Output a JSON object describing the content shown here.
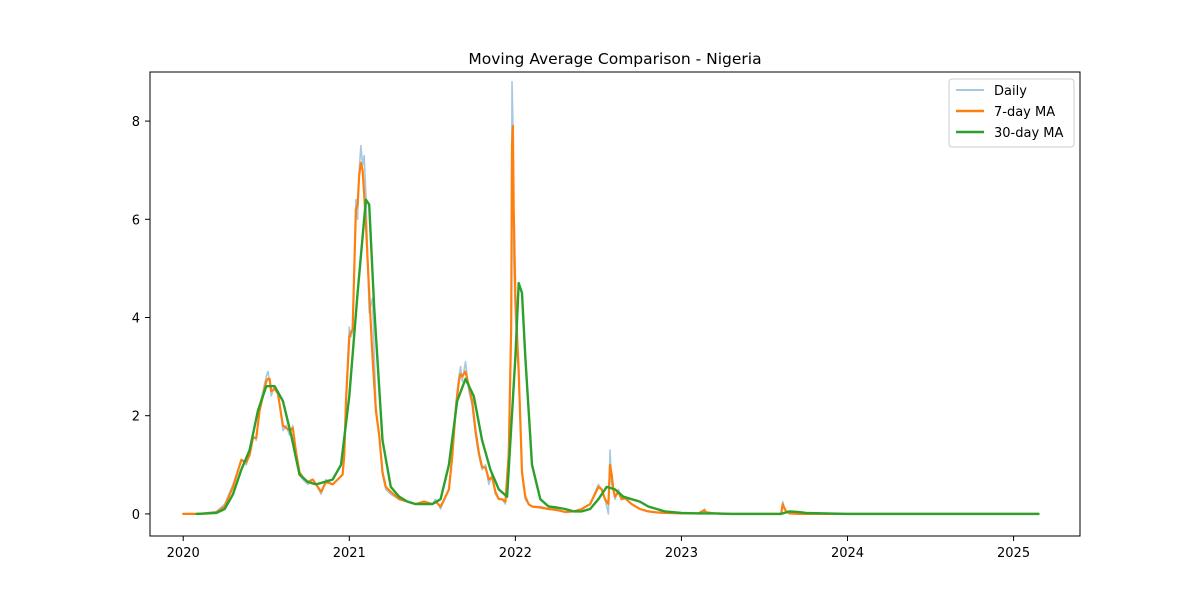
{
  "chart_data": {
    "type": "line",
    "title": "Moving Average Comparison - Nigeria",
    "xlabel": "",
    "ylabel": "",
    "xlim": [
      2019.8,
      2025.4
    ],
    "ylim": [
      -0.45,
      9.0
    ],
    "x_ticks": [
      "2020",
      "2021",
      "2022",
      "2023",
      "2024",
      "2025"
    ],
    "y_ticks": [
      "0",
      "2",
      "4",
      "6",
      "8"
    ],
    "grid": false,
    "legend": {
      "placement": "top-right"
    },
    "series": [
      {
        "name": "Daily",
        "color": "#a6c9e2",
        "x": [
          2020.0,
          2020.1,
          2020.2,
          2020.25,
          2020.3,
          2020.35,
          2020.38,
          2020.4,
          2020.42,
          2020.44,
          2020.46,
          2020.48,
          2020.5,
          2020.51,
          2020.52,
          2020.53,
          2020.55,
          2020.57,
          2020.6,
          2020.62,
          2020.64,
          2020.66,
          2020.68,
          2020.7,
          2020.72,
          2020.75,
          2020.78,
          2020.8,
          2020.83,
          2020.86,
          2020.9,
          2020.93,
          2020.96,
          2020.97,
          2020.98,
          2021.0,
          2021.01,
          2021.02,
          2021.03,
          2021.04,
          2021.05,
          2021.06,
          2021.07,
          2021.08,
          2021.09,
          2021.1,
          2021.12,
          2021.14,
          2021.16,
          2021.18,
          2021.2,
          2021.22,
          2021.25,
          2021.3,
          2021.35,
          2021.4,
          2021.45,
          2021.5,
          2021.52,
          2021.55,
          2021.57,
          2021.6,
          2021.62,
          2021.64,
          2021.65,
          2021.66,
          2021.67,
          2021.68,
          2021.7,
          2021.72,
          2021.74,
          2021.76,
          2021.78,
          2021.8,
          2021.82,
          2021.84,
          2021.86,
          2021.88,
          2021.9,
          2021.92,
          2021.94,
          2021.96,
          2021.975,
          2021.98,
          2021.985,
          2021.99,
          2022.0,
          2022.02,
          2022.04,
          2022.06,
          2022.08,
          2022.1,
          2022.15,
          2022.2,
          2022.25,
          2022.3,
          2022.35,
          2022.4,
          2022.45,
          2022.5,
          2022.52,
          2022.54,
          2022.56,
          2022.57,
          2022.58,
          2022.59,
          2022.6,
          2022.62,
          2022.64,
          2022.66,
          2022.7,
          2022.75,
          2022.8,
          2022.85,
          2022.9,
          2023.0,
          2023.1,
          2023.14,
          2023.15,
          2023.2,
          2023.3,
          2023.5,
          2023.6,
          2023.61,
          2023.62,
          2023.63,
          2023.65,
          2023.7,
          2024.0,
          2024.5,
          2025.0,
          2025.15
        ],
        "values": [
          0,
          0,
          0.05,
          0.2,
          0.6,
          1.1,
          1.0,
          1.3,
          1.6,
          1.5,
          2.2,
          2.5,
          2.8,
          2.9,
          2.7,
          2.4,
          2.6,
          2.5,
          1.7,
          1.8,
          1.6,
          1.8,
          1.2,
          0.8,
          0.7,
          0.6,
          0.7,
          0.6,
          0.4,
          0.7,
          0.6,
          0.7,
          0.8,
          1.2,
          2.4,
          3.8,
          3.6,
          3.7,
          5.0,
          6.4,
          6.0,
          7.0,
          7.5,
          7.1,
          7.3,
          6.5,
          4.1,
          4.4,
          2.2,
          1.6,
          0.8,
          0.5,
          0.4,
          0.3,
          0.25,
          0.2,
          0.25,
          0.2,
          0.3,
          0.1,
          0.3,
          0.5,
          1.2,
          2.2,
          2.5,
          2.8,
          3.0,
          2.7,
          3.1,
          2.5,
          2.2,
          1.6,
          1.2,
          0.9,
          1.0,
          0.6,
          0.8,
          0.4,
          0.3,
          0.3,
          0.2,
          1.3,
          4.0,
          8.8,
          8.0,
          5.2,
          4.0,
          2.8,
          0.8,
          0.3,
          0.2,
          0.15,
          0.15,
          0.1,
          0.1,
          0.03,
          0.05,
          0.1,
          0.2,
          0.6,
          0.5,
          0.3,
          0.0,
          1.3,
          0.6,
          0.5,
          0.3,
          0.5,
          0.3,
          0.35,
          0.2,
          0.1,
          0.05,
          0.03,
          0.02,
          0.01,
          0.01,
          0.1,
          0.02,
          0.01,
          0,
          0,
          0,
          0.25,
          0.1,
          0.05,
          0.01,
          0,
          0,
          0,
          0,
          0
        ]
      },
      {
        "name": "7-day MA",
        "color": "#ff7f0e",
        "x": [
          2020.0,
          2020.1,
          2020.2,
          2020.25,
          2020.3,
          2020.35,
          2020.38,
          2020.4,
          2020.42,
          2020.44,
          2020.46,
          2020.48,
          2020.5,
          2020.51,
          2020.52,
          2020.53,
          2020.55,
          2020.57,
          2020.6,
          2020.62,
          2020.64,
          2020.66,
          2020.68,
          2020.7,
          2020.72,
          2020.75,
          2020.78,
          2020.8,
          2020.83,
          2020.86,
          2020.9,
          2020.93,
          2020.96,
          2020.97,
          2020.98,
          2021.0,
          2021.01,
          2021.02,
          2021.03,
          2021.04,
          2021.05,
          2021.06,
          2021.07,
          2021.08,
          2021.09,
          2021.1,
          2021.12,
          2021.14,
          2021.16,
          2021.18,
          2021.2,
          2021.22,
          2021.25,
          2021.3,
          2021.35,
          2021.4,
          2021.45,
          2021.5,
          2021.52,
          2021.55,
          2021.57,
          2021.6,
          2021.62,
          2021.64,
          2021.65,
          2021.66,
          2021.67,
          2021.68,
          2021.7,
          2021.72,
          2021.74,
          2021.76,
          2021.78,
          2021.8,
          2021.82,
          2021.84,
          2021.86,
          2021.88,
          2021.9,
          2021.92,
          2021.94,
          2021.96,
          2021.975,
          2021.98,
          2021.985,
          2021.99,
          2022.0,
          2022.02,
          2022.04,
          2022.06,
          2022.08,
          2022.1,
          2022.15,
          2022.2,
          2022.25,
          2022.3,
          2022.35,
          2022.4,
          2022.45,
          2022.5,
          2022.52,
          2022.54,
          2022.56,
          2022.57,
          2022.58,
          2022.59,
          2022.6,
          2022.62,
          2022.64,
          2022.66,
          2022.7,
          2022.75,
          2022.8,
          2022.85,
          2022.9,
          2023.0,
          2023.1,
          2023.14,
          2023.15,
          2023.2,
          2023.3,
          2023.5,
          2023.6,
          2023.61,
          2023.62,
          2023.63,
          2023.65,
          2023.7,
          2024.0,
          2024.5,
          2025.0,
          2025.15
        ],
        "values": [
          0,
          0,
          0.03,
          0.15,
          0.55,
          1.1,
          1.05,
          1.2,
          1.55,
          1.55,
          2.1,
          2.4,
          2.7,
          2.75,
          2.75,
          2.5,
          2.55,
          2.45,
          1.8,
          1.75,
          1.7,
          1.75,
          1.25,
          0.85,
          0.75,
          0.65,
          0.7,
          0.6,
          0.45,
          0.65,
          0.6,
          0.7,
          0.8,
          1.2,
          2.3,
          3.6,
          3.7,
          3.75,
          5.0,
          6.2,
          6.3,
          6.9,
          7.15,
          7.0,
          6.5,
          5.9,
          4.5,
          3.2,
          2.1,
          1.6,
          0.85,
          0.55,
          0.45,
          0.3,
          0.25,
          0.2,
          0.25,
          0.2,
          0.25,
          0.15,
          0.28,
          0.5,
          1.15,
          2.1,
          2.4,
          2.7,
          2.85,
          2.8,
          2.9,
          2.6,
          2.3,
          1.7,
          1.25,
          0.95,
          0.95,
          0.7,
          0.75,
          0.45,
          0.3,
          0.3,
          0.25,
          1.2,
          3.8,
          7.5,
          7.9,
          6.2,
          4.4,
          2.9,
          0.85,
          0.35,
          0.2,
          0.15,
          0.13,
          0.1,
          0.08,
          0.04,
          0.05,
          0.1,
          0.2,
          0.55,
          0.5,
          0.3,
          0.2,
          1.0,
          0.8,
          0.5,
          0.35,
          0.45,
          0.3,
          0.32,
          0.2,
          0.1,
          0.05,
          0.03,
          0.02,
          0.01,
          0.01,
          0.07,
          0.03,
          0.01,
          0,
          0,
          0,
          0.2,
          0.12,
          0.05,
          0.01,
          0,
          0,
          0,
          0,
          0
        ]
      },
      {
        "name": "30-day MA",
        "color": "#2ca02c",
        "x": [
          2020.08,
          2020.2,
          2020.25,
          2020.3,
          2020.35,
          2020.4,
          2020.45,
          2020.5,
          2020.55,
          2020.6,
          2020.65,
          2020.7,
          2020.75,
          2020.8,
          2020.85,
          2020.9,
          2020.95,
          2021.0,
          2021.05,
          2021.1,
          2021.12,
          2021.15,
          2021.2,
          2021.25,
          2021.3,
          2021.35,
          2021.4,
          2021.45,
          2021.5,
          2021.55,
          2021.6,
          2021.65,
          2021.7,
          2021.75,
          2021.8,
          2021.85,
          2021.9,
          2021.95,
          2022.0,
          2022.02,
          2022.04,
          2022.06,
          2022.1,
          2022.15,
          2022.2,
          2022.25,
          2022.3,
          2022.35,
          2022.4,
          2022.45,
          2022.5,
          2022.55,
          2022.6,
          2022.65,
          2022.7,
          2022.75,
          2022.8,
          2022.9,
          2023.0,
          2023.1,
          2023.2,
          2023.3,
          2023.5,
          2023.6,
          2023.65,
          2023.7,
          2023.75,
          2024.0,
          2024.5,
          2025.0,
          2025.15
        ],
        "values": [
          0,
          0.02,
          0.1,
          0.4,
          0.9,
          1.3,
          2.1,
          2.6,
          2.6,
          2.3,
          1.6,
          0.8,
          0.65,
          0.6,
          0.65,
          0.7,
          1.0,
          2.4,
          4.5,
          6.4,
          6.3,
          4.2,
          1.5,
          0.55,
          0.35,
          0.25,
          0.2,
          0.2,
          0.2,
          0.3,
          1.0,
          2.3,
          2.75,
          2.4,
          1.5,
          0.9,
          0.5,
          0.35,
          3.2,
          4.7,
          4.5,
          3.2,
          1.0,
          0.3,
          0.15,
          0.13,
          0.1,
          0.05,
          0.05,
          0.1,
          0.3,
          0.55,
          0.5,
          0.35,
          0.3,
          0.25,
          0.15,
          0.05,
          0.02,
          0.01,
          0.01,
          0,
          0,
          0,
          0.05,
          0.04,
          0.02,
          0,
          0,
          0,
          0
        ]
      }
    ]
  }
}
